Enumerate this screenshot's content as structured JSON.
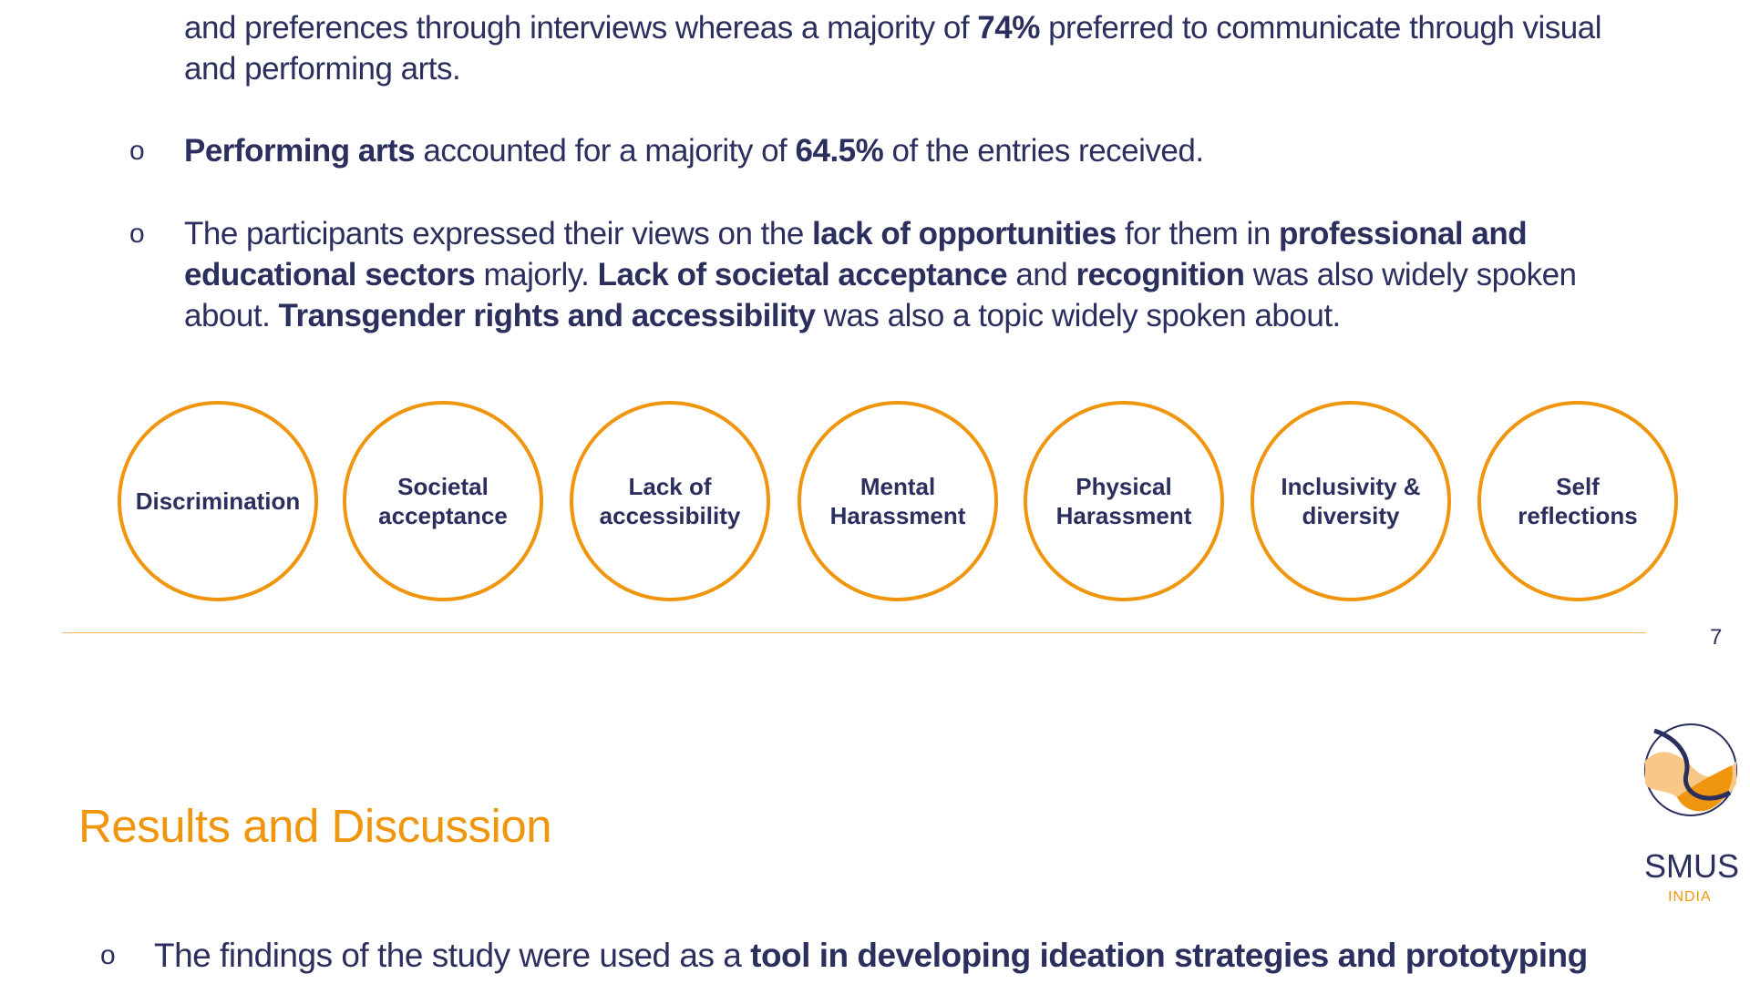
{
  "bullets_top": [
    {
      "runs": [
        {
          "text": "and preferences through interviews whereas a majority of ",
          "bold": false
        },
        {
          "text": "74%",
          "bold": true
        },
        {
          "text": " preferred to communicate through visual and performing arts.",
          "bold": false
        }
      ]
    },
    {
      "marker": "o",
      "runs": [
        {
          "text": "Performing arts",
          "bold": true
        },
        {
          "text": " accounted for a majority of ",
          "bold": false
        },
        {
          "text": "64.5%",
          "bold": true
        },
        {
          "text": " of the entries received.",
          "bold": false
        }
      ]
    },
    {
      "marker": "o",
      "runs": [
        {
          "text": "The participants expressed their views on the ",
          "bold": false
        },
        {
          "text": "lack of opportunities",
          "bold": true
        },
        {
          "text": " for them in ",
          "bold": false
        },
        {
          "text": "professional and educational sectors",
          "bold": true
        },
        {
          "text": " majorly. ",
          "bold": false
        },
        {
          "text": "Lack of societal acceptance",
          "bold": true
        },
        {
          "text": " and ",
          "bold": false
        },
        {
          "text": "recognition",
          "bold": true
        },
        {
          "text": " was also widely spoken about. ",
          "bold": false
        },
        {
          "text": "Transgender rights and accessibility",
          "bold": true
        },
        {
          "text": " was also a topic widely spoken about.",
          "bold": false
        }
      ]
    }
  ],
  "themes": [
    [
      "Discrimination"
    ],
    [
      "Societal",
      "acceptance"
    ],
    [
      "Lack of",
      "accessibility"
    ],
    [
      "Mental",
      "Harassment"
    ],
    [
      "Physical",
      "Harassment"
    ],
    [
      "Inclusivity &",
      "diversity"
    ],
    [
      "Self",
      "reflections"
    ]
  ],
  "page_number": "7",
  "logo": {
    "name": "SMUS",
    "sub": "INDIA"
  },
  "heading": "Results and Discussion",
  "bullets_bottom": [
    {
      "marker": "o",
      "runs": [
        {
          "text": "The findings of the study were used as a ",
          "bold": false
        },
        {
          "text": "tool in developing ideation strategies and prototyping",
          "bold": true
        }
      ]
    }
  ]
}
